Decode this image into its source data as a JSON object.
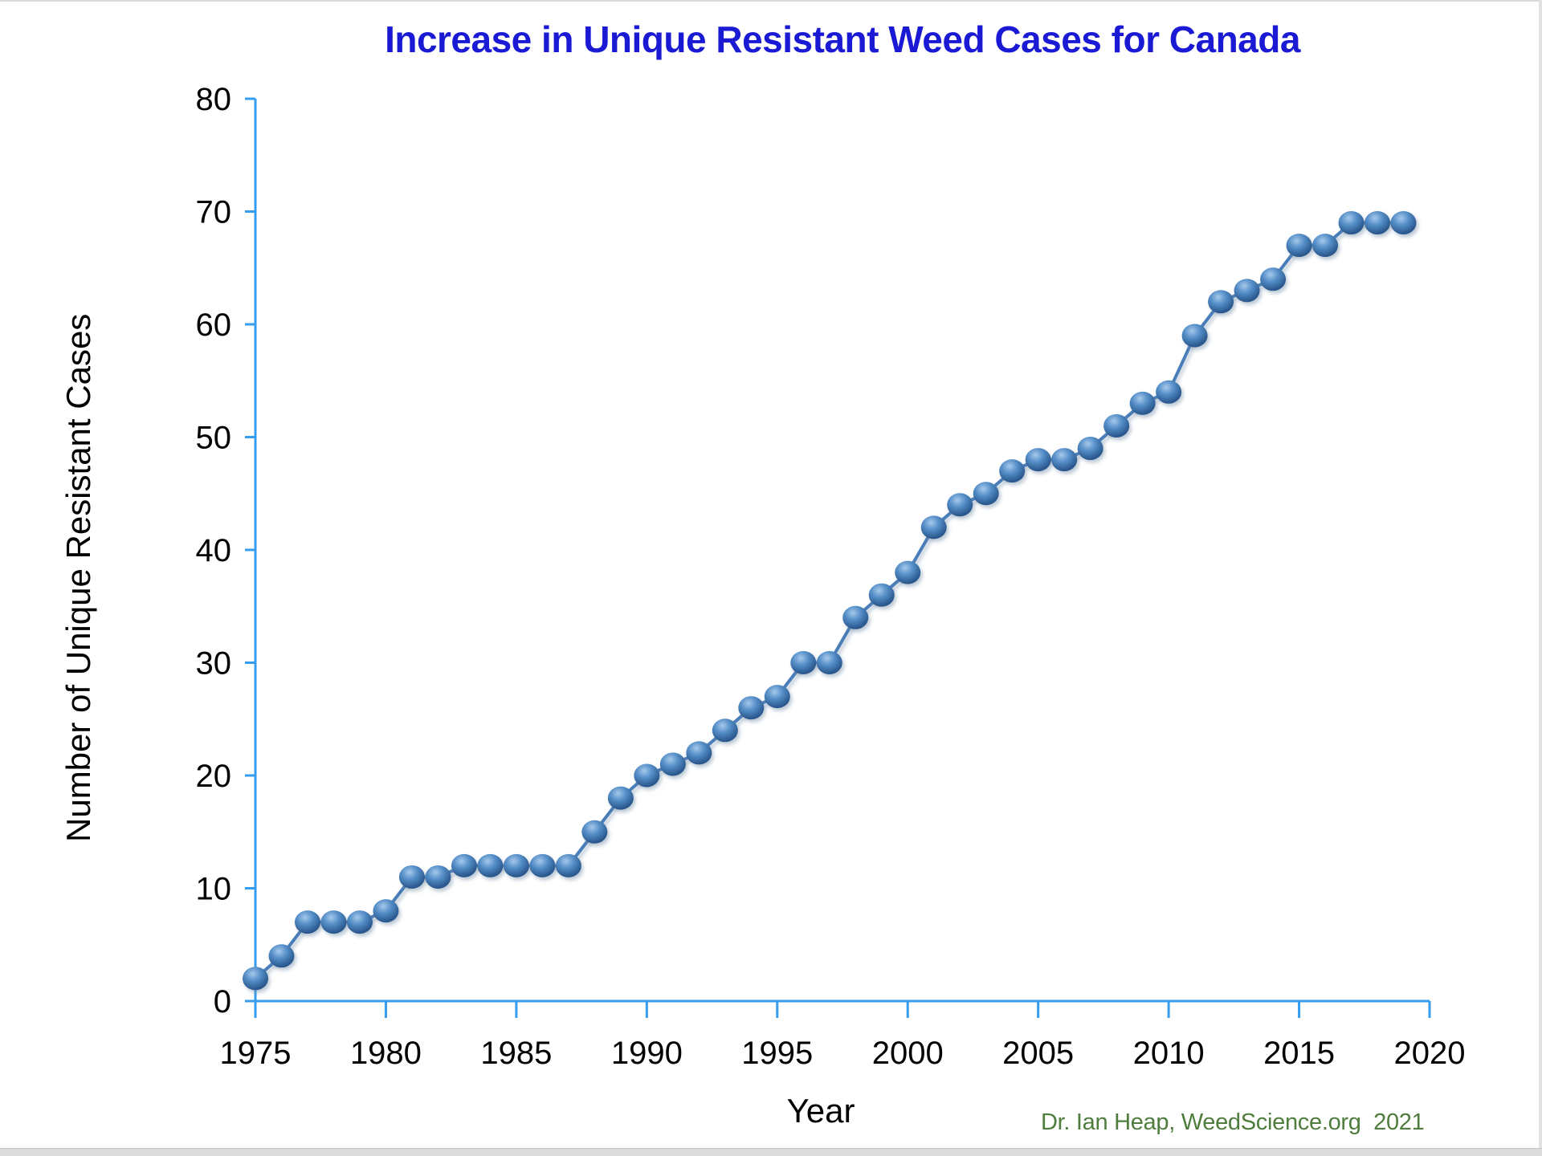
{
  "page": {
    "title": "Increase in Unique Resistant Weed Cases for Canada",
    "attribution": "Dr. Ian Heap, WeedScience.org  2021"
  },
  "chart_data": {
    "type": "line",
    "title": "Increase in Unique Resistant Weed Cases for Canada",
    "xlabel": "Year",
    "ylabel": "Number of Unique Resistant Cases",
    "x": [
      1975,
      1976,
      1977,
      1978,
      1979,
      1980,
      1981,
      1982,
      1983,
      1984,
      1985,
      1986,
      1987,
      1988,
      1989,
      1990,
      1991,
      1992,
      1993,
      1994,
      1995,
      1996,
      1997,
      1998,
      1999,
      2000,
      2001,
      2002,
      2003,
      2004,
      2005,
      2006,
      2007,
      2008,
      2009,
      2010,
      2011,
      2012,
      2013,
      2014,
      2015,
      2016,
      2017,
      2018,
      2019
    ],
    "values": [
      2,
      4,
      7,
      7,
      7,
      8,
      11,
      11,
      12,
      12,
      12,
      12,
      12,
      15,
      18,
      20,
      21,
      22,
      24,
      26,
      27,
      30,
      30,
      34,
      36,
      38,
      42,
      44,
      45,
      47,
      48,
      48,
      49,
      51,
      53,
      54,
      59,
      62,
      63,
      64,
      67,
      67,
      69,
      69,
      69
    ],
    "x_ticks": [
      1975,
      1980,
      1985,
      1990,
      1995,
      2000,
      2005,
      2010,
      2015,
      2020
    ],
    "y_ticks": [
      0,
      10,
      20,
      30,
      40,
      50,
      60,
      70,
      80
    ],
    "xlim": [
      1975,
      2020
    ],
    "ylim": [
      0,
      80
    ],
    "grid": false,
    "legend": "none",
    "marker": "sphere-3d",
    "attribution": "Dr. Ian Heap, WeedScience.org  2021",
    "colors": {
      "title": "#1a1ad4",
      "axis": "#359cee",
      "series_line": "#4a7db8",
      "marker_light": "#a6c9ea",
      "marker_mid": "#568fc9",
      "marker_dark": "#2a598e",
      "attribution": "#4e7d3e",
      "tick_text": "#000000"
    }
  }
}
